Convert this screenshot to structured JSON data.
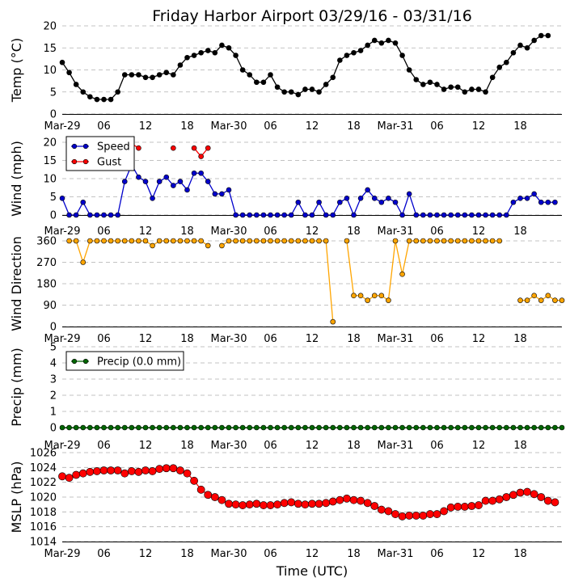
{
  "figure": {
    "title": "Friday Harbor Airport 03/29/16 - 03/31/16",
    "xlabel": "Time (UTC)"
  },
  "chart_data": [
    {
      "id": "temp",
      "type": "line",
      "ylabel": "Temp (°C)",
      "ylim": [
        0,
        20
      ],
      "yticks": [
        0,
        5,
        10,
        15,
        20
      ],
      "grid": true,
      "series": [
        {
          "color": "#000000",
          "values": [
            11.7,
            9.4,
            6.7,
            5.0,
            3.9,
            3.3,
            3.3,
            3.3,
            5.0,
            8.9,
            8.9,
            8.9,
            8.3,
            8.3,
            8.9,
            9.4,
            8.9,
            11.1,
            12.8,
            13.3,
            13.9,
            14.4,
            13.9,
            15.6,
            15.0,
            13.3,
            10.0,
            8.9,
            7.2,
            7.2,
            8.9,
            6.1,
            5.0,
            5.0,
            4.4,
            5.6,
            5.6,
            5.0,
            6.7,
            8.3,
            12.2,
            13.3,
            13.9,
            14.4,
            15.6,
            16.7,
            16.1,
            16.7,
            16.1,
            13.3,
            10.0,
            7.8,
            6.7,
            7.2,
            6.7,
            5.6,
            6.1,
            6.1,
            5.0,
            5.6,
            5.6,
            5.0,
            8.3,
            10.6,
            11.7,
            13.9,
            15.6,
            15.0,
            16.7,
            17.8,
            17.8
          ]
        }
      ]
    },
    {
      "id": "wind",
      "type": "line",
      "ylabel": "Wind (mph)",
      "ylim": [
        0,
        20
      ],
      "yticks": [
        0,
        5,
        10,
        15,
        20
      ],
      "grid": true,
      "legend": "top-left",
      "series": [
        {
          "name": "Speed",
          "color": "#0000cc",
          "values": [
            4.6,
            0,
            0,
            3.5,
            0,
            0,
            0,
            0,
            0,
            9.2,
            13.8,
            10.4,
            9.2,
            4.6,
            9.2,
            10.4,
            8.1,
            9.2,
            6.9,
            11.5,
            11.5,
            9.2,
            5.8,
            5.8,
            6.9,
            0,
            0,
            0,
            0,
            0,
            0,
            0,
            0,
            0,
            3.5,
            0,
            0,
            3.5,
            0,
            0,
            3.5,
            4.6,
            0,
            4.6,
            6.9,
            4.6,
            3.5,
            4.6,
            3.5,
            0,
            5.8,
            0,
            0,
            0,
            0,
            0,
            0,
            0,
            0,
            0,
            0,
            0,
            0,
            0,
            0,
            3.5,
            4.6,
            4.6,
            5.8,
            3.5,
            3.5,
            3.5
          ]
        },
        {
          "name": "Gust",
          "color": "#ff0000",
          "values": [
            null,
            null,
            null,
            null,
            null,
            null,
            null,
            null,
            null,
            null,
            19.6,
            18.4,
            null,
            null,
            null,
            null,
            18.4,
            null,
            null,
            18.4,
            16.1,
            18.4,
            null,
            null,
            null,
            null,
            null,
            null,
            null,
            null,
            null,
            null,
            null,
            null,
            null,
            null,
            null,
            null,
            null,
            null,
            null,
            null,
            null,
            null,
            null,
            null,
            null,
            null,
            null,
            null,
            null,
            null,
            null,
            null,
            null,
            null,
            null,
            null,
            null,
            null,
            null,
            null,
            null,
            null,
            null,
            null,
            null,
            null,
            null,
            null,
            null,
            null
          ]
        }
      ]
    },
    {
      "id": "wdir",
      "type": "line",
      "ylabel": "Wind Direction",
      "ylim": [
        0,
        360
      ],
      "yticks": [
        0,
        90,
        180,
        270,
        360
      ],
      "grid": true,
      "series": [
        {
          "color": "#ffa500",
          "values": [
            null,
            360,
            360,
            270,
            360,
            360,
            360,
            360,
            360,
            360,
            360,
            360,
            360,
            340,
            360,
            360,
            360,
            360,
            360,
            360,
            360,
            340,
            null,
            340,
            360,
            360,
            360,
            360,
            360,
            360,
            360,
            360,
            360,
            360,
            360,
            360,
            360,
            360,
            360,
            20,
            null,
            360,
            130,
            130,
            110,
            130,
            130,
            110,
            360,
            220,
            360,
            360,
            360,
            360,
            360,
            360,
            360,
            360,
            360,
            360,
            360,
            360,
            360,
            360,
            null,
            null,
            110,
            110,
            130,
            110,
            130,
            110,
            110
          ]
        }
      ]
    },
    {
      "id": "precip",
      "type": "line",
      "ylabel": "Precip (mm)",
      "ylim": [
        0,
        5
      ],
      "yticks": [
        0,
        1,
        2,
        3,
        4,
        5
      ],
      "grid": true,
      "legend": "top-left",
      "series": [
        {
          "name": "Precip (0.0 mm)",
          "color": "#006600",
          "values": [
            0,
            0,
            0,
            0,
            0,
            0,
            0,
            0,
            0,
            0,
            0,
            0,
            0,
            0,
            0,
            0,
            0,
            0,
            0,
            0,
            0,
            0,
            0,
            0,
            0,
            0,
            0,
            0,
            0,
            0,
            0,
            0,
            0,
            0,
            0,
            0,
            0,
            0,
            0,
            0,
            0,
            0,
            0,
            0,
            0,
            0,
            0,
            0,
            0,
            0,
            0,
            0,
            0,
            0,
            0,
            0,
            0,
            0,
            0,
            0,
            0,
            0,
            0,
            0,
            0,
            0,
            0,
            0,
            0,
            0,
            0,
            0,
            0
          ]
        }
      ]
    },
    {
      "id": "mslp",
      "type": "line",
      "ylabel": "MSLP (hPa)",
      "ylim": [
        1014,
        1026
      ],
      "yticks": [
        1014,
        1016,
        1018,
        1020,
        1022,
        1024,
        1026
      ],
      "grid": true,
      "series": [
        {
          "color": "#ff0000",
          "values": [
            1022.8,
            1022.6,
            1023.0,
            1023.2,
            1023.4,
            1023.5,
            1023.6,
            1023.6,
            1023.6,
            1023.2,
            1023.5,
            1023.4,
            1023.6,
            1023.5,
            1023.8,
            1023.9,
            1023.9,
            1023.6,
            1023.2,
            1022.2,
            1021.0,
            1020.3,
            1020.0,
            1019.6,
            1019.1,
            1019.0,
            1018.9,
            1019.0,
            1019.1,
            1018.9,
            1018.9,
            1019.0,
            1019.2,
            1019.3,
            1019.1,
            1019.0,
            1019.1,
            1019.1,
            1019.2,
            1019.4,
            1019.6,
            1019.8,
            1019.6,
            1019.5,
            1019.2,
            1018.8,
            1018.3,
            1018.1,
            1017.7,
            1017.4,
            1017.5,
            1017.5,
            1017.5,
            1017.7,
            1017.7,
            1018.1,
            1018.6,
            1018.7,
            1018.7,
            1018.8,
            1018.9,
            1019.5,
            1019.5,
            1019.7,
            1020.0,
            1020.3,
            1020.6,
            1020.7,
            1020.4,
            1020.0,
            1019.5,
            1019.3
          ]
        }
      ]
    }
  ],
  "xticks": [
    {
      "label": "Mar-29",
      "index": 0
    },
    {
      "label": "06",
      "index": 6
    },
    {
      "label": "12",
      "index": 12
    },
    {
      "label": "18",
      "index": 18
    },
    {
      "label": "Mar-30",
      "index": 24
    },
    {
      "label": "06",
      "index": 30
    },
    {
      "label": "12",
      "index": 36
    },
    {
      "label": "18",
      "index": 42
    },
    {
      "label": "Mar-31",
      "index": 48
    },
    {
      "label": "06",
      "index": 54
    },
    {
      "label": "12",
      "index": 60
    },
    {
      "label": "18",
      "index": 66
    }
  ]
}
